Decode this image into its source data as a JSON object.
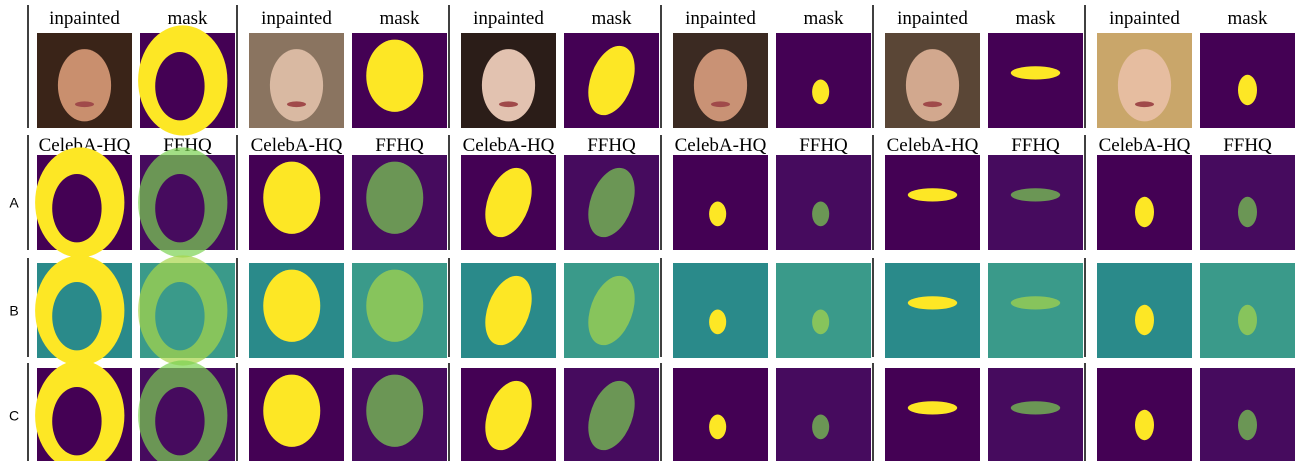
{
  "groups": [
    {
      "top": [
        "inpainted",
        "mask"
      ],
      "bottom": [
        "CelebA-HQ",
        "FFHQ"
      ]
    },
    {
      "top": [
        "inpainted",
        "mask"
      ],
      "bottom": [
        "CelebA-HQ",
        "FFHQ"
      ]
    },
    {
      "top": [
        "inpainted",
        "mask"
      ],
      "bottom": [
        "CelebA-HQ",
        "FFHQ"
      ]
    },
    {
      "top": [
        "inpainted",
        "mask"
      ],
      "bottom": [
        "CelebA-HQ",
        "FFHQ"
      ]
    },
    {
      "top": [
        "inpainted",
        "mask"
      ],
      "bottom": [
        "CelebA-HQ",
        "FFHQ"
      ]
    },
    {
      "top": [
        "inpainted",
        "mask"
      ],
      "bottom": [
        "CelebA-HQ",
        "FFHQ"
      ]
    }
  ],
  "rows": [
    "A",
    "B",
    "C"
  ]
}
